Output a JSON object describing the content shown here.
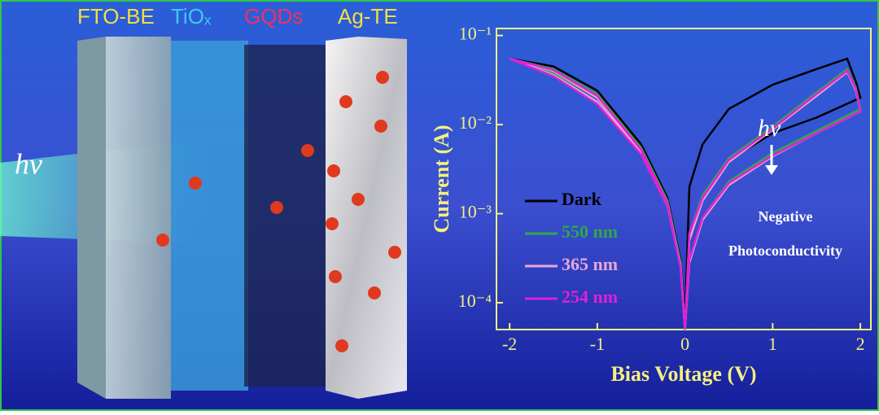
{
  "illustration": {
    "labels": [
      "FTO-BE",
      "TiOₓ",
      "GQDs",
      "Ag-TE"
    ],
    "light": "hν"
  },
  "chart_data": {
    "type": "line",
    "xlabel": "Bias Voltage (V)",
    "ylabel": "Current (A)",
    "x": [
      -2,
      -1.5,
      -1,
      -0.5,
      -0.2,
      -0.05,
      0,
      0.05,
      0.2,
      0.5,
      1,
      1.5,
      1.85,
      1.95,
      2,
      1.5,
      1,
      0.5,
      0.2,
      0.05,
      0,
      -0.05,
      -0.2,
      -0.5,
      -1,
      -1.5,
      -2
    ],
    "series": [
      {
        "name": "Dark",
        "color": "#000000",
        "values": [
          0.055,
          0.04,
          0.022,
          0.006,
          0.0015,
          0.0003,
          6e-05,
          0.002,
          0.006,
          0.015,
          0.028,
          0.042,
          0.055,
          0.03,
          0.02,
          0.012,
          0.008,
          0.004,
          0.0015,
          0.0005,
          6e-05,
          0.0003,
          0.0015,
          0.006,
          0.024,
          0.045,
          0.055
        ]
      },
      {
        "name": "550 nm",
        "color": "#2ea84a",
        "values": [
          0.055,
          0.038,
          0.02,
          0.005,
          0.0013,
          0.00028,
          5e-05,
          0.0006,
          0.0016,
          0.0042,
          0.0095,
          0.023,
          0.042,
          0.026,
          0.015,
          0.0085,
          0.0048,
          0.0023,
          0.0009,
          0.0003,
          5e-05,
          0.00028,
          0.0014,
          0.0055,
          0.022,
          0.042,
          0.055
        ]
      },
      {
        "name": "365 nm",
        "color": "#e8a6d8",
        "values": [
          0.055,
          0.036,
          0.018,
          0.0048,
          0.0012,
          0.00026,
          5e-05,
          0.0005,
          0.0014,
          0.0038,
          0.0088,
          0.021,
          0.039,
          0.024,
          0.014,
          0.008,
          0.0044,
          0.0021,
          0.00085,
          0.00028,
          5e-05,
          0.00026,
          0.0013,
          0.005,
          0.02,
          0.04,
          0.055
        ]
      },
      {
        "name": "254 nm",
        "color": "#e020d8",
        "values": [
          0.055,
          0.035,
          0.017,
          0.0046,
          0.0012,
          0.00025,
          5e-05,
          0.0006,
          0.0015,
          0.004,
          0.009,
          0.022,
          0.04,
          0.025,
          0.014,
          0.008,
          0.0045,
          0.0022,
          0.0009,
          0.0003,
          5e-05,
          0.00025,
          0.0013,
          0.0052,
          0.021,
          0.041,
          0.055
        ]
      }
    ],
    "xlim": [
      -2.15,
      2.12
    ],
    "xticks": [
      -2,
      -1,
      0,
      1,
      2
    ],
    "ylim": [
      5e-05,
      0.12
    ],
    "log_scale_y": true,
    "yticks": [
      {
        "value": 0.1,
        "label": "10⁻¹"
      },
      {
        "value": 0.01,
        "label": "10⁻²"
      },
      {
        "value": 0.001,
        "label": "10⁻³"
      },
      {
        "value": 0.0001,
        "label": "10⁻⁴"
      }
    ],
    "annotations": [
      "hν",
      "Negative",
      "Photoconductivity"
    ]
  }
}
